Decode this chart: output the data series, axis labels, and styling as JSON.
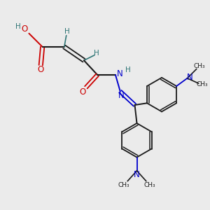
{
  "bg_color": "#ebebeb",
  "bond_color": "#1a1a1a",
  "oxygen_color": "#cc0000",
  "nitrogen_color": "#0000cc",
  "hydrogen_color": "#2e7575",
  "fig_size": [
    3.0,
    3.0
  ],
  "dpi": 100,
  "xlim": [
    0,
    10
  ],
  "ylim": [
    0,
    10
  ]
}
